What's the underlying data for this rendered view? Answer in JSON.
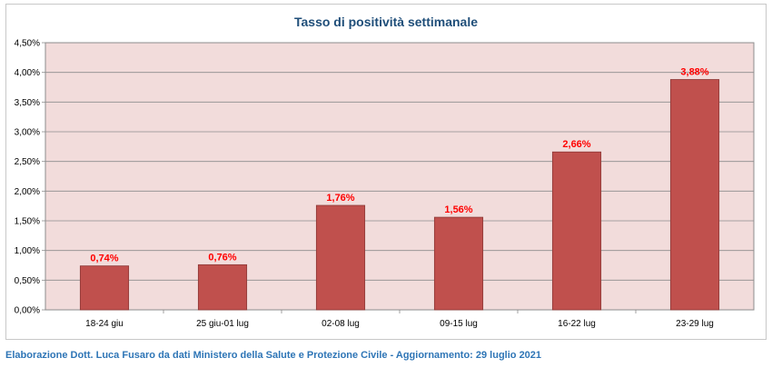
{
  "chart_data": {
    "type": "bar",
    "title": "Tasso di positività settimanale",
    "xlabel": "",
    "ylabel": "",
    "categories": [
      "18-24 giu",
      "25 giu-01 lug",
      "02-08 lug",
      "09-15 lug",
      "16-22 lug",
      "23-29 lug"
    ],
    "values": [
      0.74,
      0.76,
      1.76,
      1.56,
      2.66,
      3.88
    ],
    "value_labels": [
      "0,74%",
      "0,76%",
      "1,76%",
      "1,56%",
      "2,66%",
      "3,88%"
    ],
    "ylim": [
      0,
      4.5
    ],
    "yticks": [
      0,
      0.5,
      1.0,
      1.5,
      2.0,
      2.5,
      3.0,
      3.5,
      4.0,
      4.5
    ],
    "ytick_labels": [
      "0,00%",
      "0,50%",
      "1,00%",
      "1,50%",
      "2,00%",
      "2,50%",
      "3,00%",
      "3,50%",
      "4,00%",
      "4,50%"
    ],
    "grid": true,
    "legend": false,
    "colors": {
      "bar": "#c0504d",
      "bar_edge": "#8c3836",
      "plot_bg": "#f2dcdb",
      "grid": "#8c8c8c",
      "label": "#ff0000",
      "title": "#1f4e79"
    }
  },
  "footer": {
    "note": "Elaborazione Dott. Luca Fusaro da dati Ministero della Salute e Protezione Civile - Aggiornamento: 29 luglio 2021"
  }
}
